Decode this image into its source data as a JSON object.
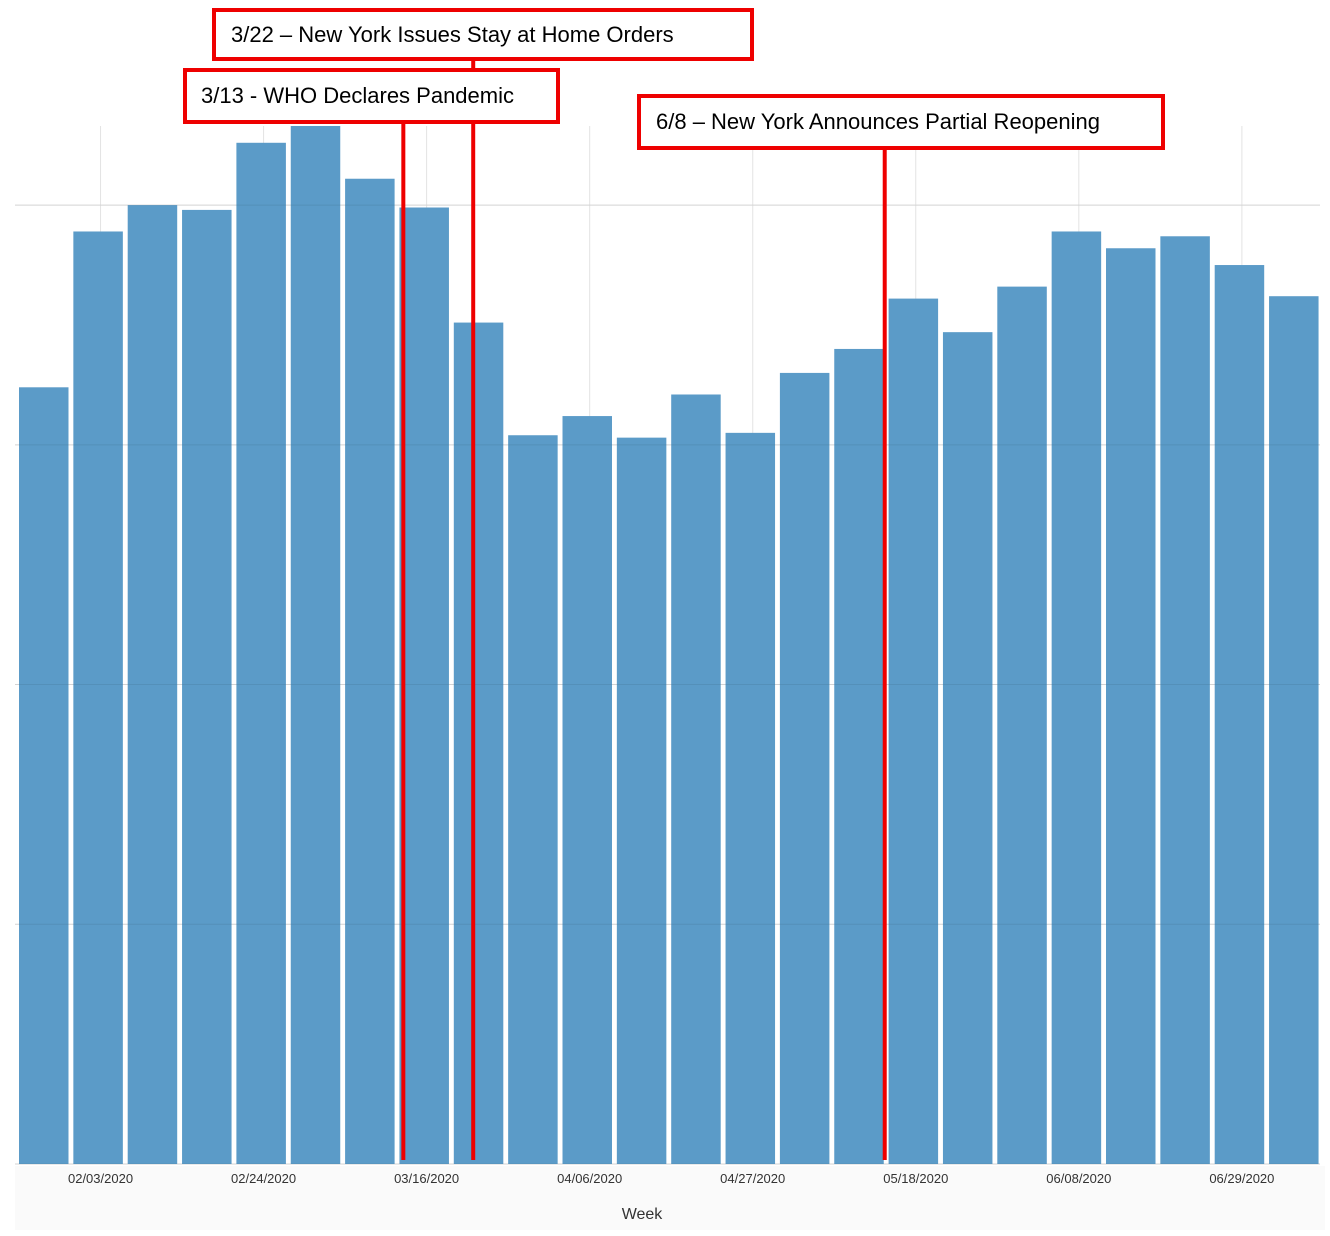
{
  "chart_data": {
    "type": "bar",
    "xlabel": "Week",
    "ylabel": "",
    "categories": [
      "01/27/2020",
      "02/03/2020",
      "02/10/2020",
      "02/17/2020",
      "02/24/2020",
      "03/02/2020",
      "03/09/2020",
      "03/16/2020",
      "03/23/2020",
      "03/30/2020",
      "04/06/2020",
      "04/13/2020",
      "04/20/2020",
      "04/27/2020",
      "05/04/2020",
      "05/11/2020",
      "05/18/2020",
      "05/25/2020",
      "06/01/2020",
      "06/08/2020",
      "06/15/2020",
      "06/22/2020",
      "06/29/2020",
      "07/06/2020"
    ],
    "values": [
      3.24,
      3.89,
      4.0,
      3.98,
      4.26,
      4.33,
      4.11,
      3.99,
      3.51,
      3.04,
      3.12,
      3.03,
      3.21,
      3.05,
      3.3,
      3.4,
      3.61,
      3.47,
      3.66,
      3.89,
      3.82,
      3.87,
      3.75,
      3.62
    ],
    "ylim": [
      0,
      4.33
    ],
    "tick_labels": [
      "02/03/2020",
      "02/24/2020",
      "03/16/2020",
      "04/06/2020",
      "04/27/2020",
      "05/18/2020",
      "06/08/2020",
      "06/29/2020"
    ],
    "grid": true,
    "bar_color": "#5b9bc8",
    "annotation_color": "#ee0000",
    "annotations": [
      {
        "text": "3/22 – New York Issues Stay at Home Orders",
        "x": "03/22/2020"
      },
      {
        "text": "3/13 - WHO Declares Pandemic",
        "x": "03/13/2020"
      },
      {
        "text": "6/8 – New York Announces Partial Reopening",
        "x": "05/14/2020"
      }
    ]
  }
}
